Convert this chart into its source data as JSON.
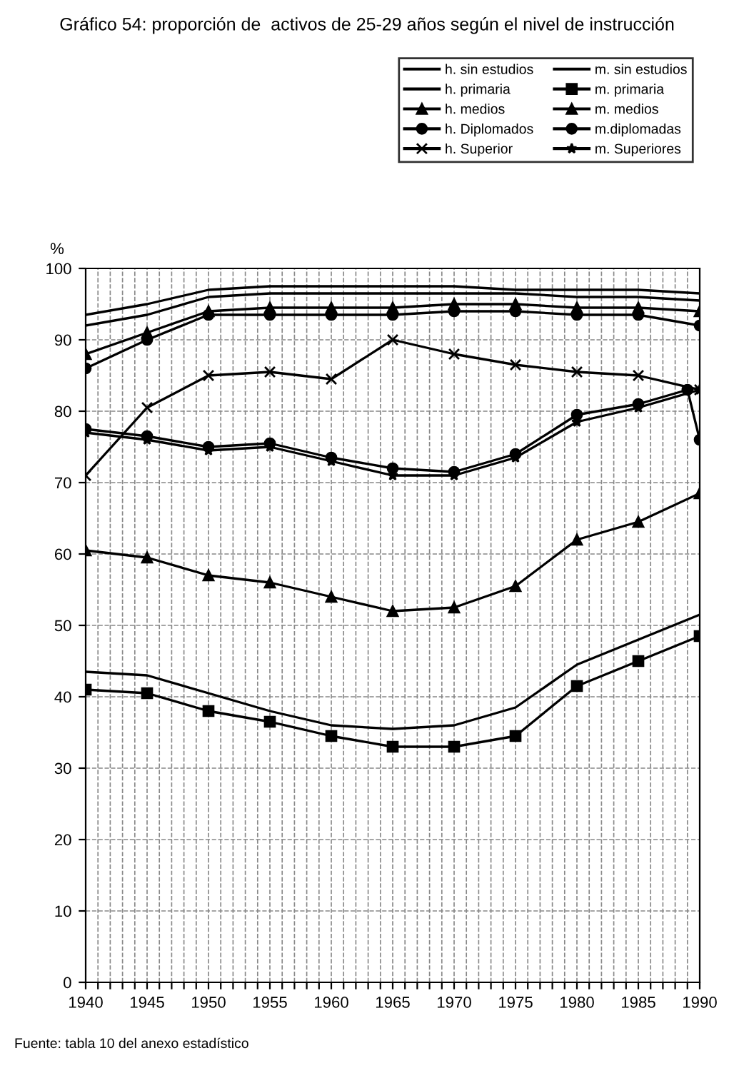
{
  "chart_data": {
    "type": "line",
    "title": "Gráfico 54: proporción de  activos de 25-29 años según el nivel de instrucción",
    "ylabel": "%",
    "annotations": [
      "Fuente: tabla 10 del anexo estadístico"
    ],
    "x": [
      1940,
      1945,
      1950,
      1955,
      1960,
      1965,
      1970,
      1975,
      1980,
      1985,
      1990
    ],
    "series": [
      {
        "name": "h. sin estudios",
        "color": "#000000",
        "marker": "none",
        "values": [
          93.5,
          95,
          97,
          97.5,
          97.5,
          97.5,
          97.5,
          97,
          97,
          97,
          96.5
        ]
      },
      {
        "name": "h. primaria",
        "color": "#000000",
        "marker": "none",
        "values": [
          92,
          93.5,
          96,
          96.5,
          96.5,
          96.5,
          96.5,
          96.5,
          96,
          96,
          95.5
        ]
      },
      {
        "name": "h. medios",
        "color": "#000000",
        "marker": "triangle",
        "values": [
          88,
          91,
          94,
          94.5,
          94.5,
          94.5,
          95,
          95,
          94.5,
          94.5,
          94
        ]
      },
      {
        "name": "h. Diplomados",
        "color": "#000000",
        "marker": "circle",
        "values": [
          86,
          90,
          93.5,
          93.5,
          93.5,
          93.5,
          94,
          94,
          93.5,
          93.5,
          92
        ]
      },
      {
        "name": "h. Superior",
        "color": "#000000",
        "marker": "cross",
        "values": [
          71,
          80.5,
          85,
          85.5,
          84.5,
          90,
          88,
          86.5,
          85.5,
          85,
          83
        ]
      },
      {
        "name": "m. sin estudios",
        "color": "#000000",
        "marker": "none",
        "values": [
          43.5,
          43,
          40.5,
          38,
          36,
          35.5,
          36,
          38.5,
          44.5,
          48,
          51.5
        ]
      },
      {
        "name": "m. primaria",
        "color": "#000000",
        "marker": "square",
        "values": [
          41,
          40.5,
          38,
          36.5,
          34.5,
          33,
          33,
          34.5,
          41.5,
          45,
          48.5
        ]
      },
      {
        "name": "m. medios",
        "color": "#000000",
        "marker": "triangle",
        "values": [
          60.5,
          59.5,
          57,
          56,
          54,
          52,
          52.5,
          55.5,
          62,
          64.5,
          68.5
        ]
      },
      {
        "name": "m.diplomadas",
        "color": "#000000",
        "marker": "circle",
        "x": [
          1940,
          1945,
          1950,
          1955,
          1960,
          1965,
          1970,
          1975,
          1980,
          1985,
          1989,
          1990
        ],
        "values": [
          77.5,
          76.5,
          75,
          75.5,
          73.5,
          72,
          71.5,
          74,
          79.5,
          81,
          83,
          76
        ]
      },
      {
        "name": "m. Superiores",
        "color": "#000000",
        "marker": "star",
        "values": [
          77,
          76,
          74.5,
          75,
          73,
          71,
          71,
          73.5,
          78.5,
          80.5,
          83
        ]
      }
    ],
    "xlim": [
      1940,
      1990
    ],
    "xticks": [
      1940,
      {
        "value": 1941,
        "label": null
      },
      {
        "value": 1942,
        "label": null
      },
      {
        "value": 1943,
        "label": null
      },
      {
        "value": 1944,
        "label": null
      },
      1945,
      {
        "value": 1946,
        "label": null
      },
      {
        "value": 1947,
        "label": null
      },
      {
        "value": 1948,
        "label": null
      },
      {
        "value": 1949,
        "label": null
      },
      1950,
      {
        "value": 1951,
        "label": null
      },
      {
        "value": 1952,
        "label": null
      },
      {
        "value": 1953,
        "label": null
      },
      {
        "value": 1954,
        "label": null
      },
      1955,
      {
        "value": 1956,
        "label": null
      },
      {
        "value": 1957,
        "label": null
      },
      {
        "value": 1958,
        "label": null
      },
      {
        "value": 1959,
        "label": null
      },
      1960,
      {
        "value": 1961,
        "label": null
      },
      {
        "value": 1962,
        "label": null
      },
      {
        "value": 1963,
        "label": null
      },
      {
        "value": 1964,
        "label": null
      },
      1965,
      {
        "value": 1966,
        "label": null
      },
      {
        "value": 1967,
        "label": null
      },
      {
        "value": 1968,
        "label": null
      },
      {
        "value": 1969,
        "label": null
      },
      1970,
      {
        "value": 1971,
        "label": null
      },
      {
        "value": 1972,
        "label": null
      },
      {
        "value": 1973,
        "label": null
      },
      {
        "value": 1974,
        "label": null
      },
      1975,
      {
        "value": 1976,
        "label": null
      },
      {
        "value": 1977,
        "label": null
      },
      {
        "value": 1978,
        "label": null
      },
      {
        "value": 1979,
        "label": null
      },
      1980,
      {
        "value": 1981,
        "label": null
      },
      {
        "value": 1982,
        "label": null
      },
      {
        "value": 1983,
        "label": null
      },
      {
        "value": 1984,
        "label": null
      },
      1985,
      {
        "value": 1986,
        "label": null
      },
      {
        "value": 1987,
        "label": null
      },
      {
        "value": 1988,
        "label": null
      },
      {
        "value": 1989,
        "label": null
      },
      1990
    ],
    "ylim": [
      0,
      100
    ],
    "yticks": [
      0,
      10,
      20,
      30,
      40,
      50,
      60,
      70,
      80,
      90,
      100
    ],
    "grid": true,
    "legend": "top right",
    "line_style": "solid"
  }
}
